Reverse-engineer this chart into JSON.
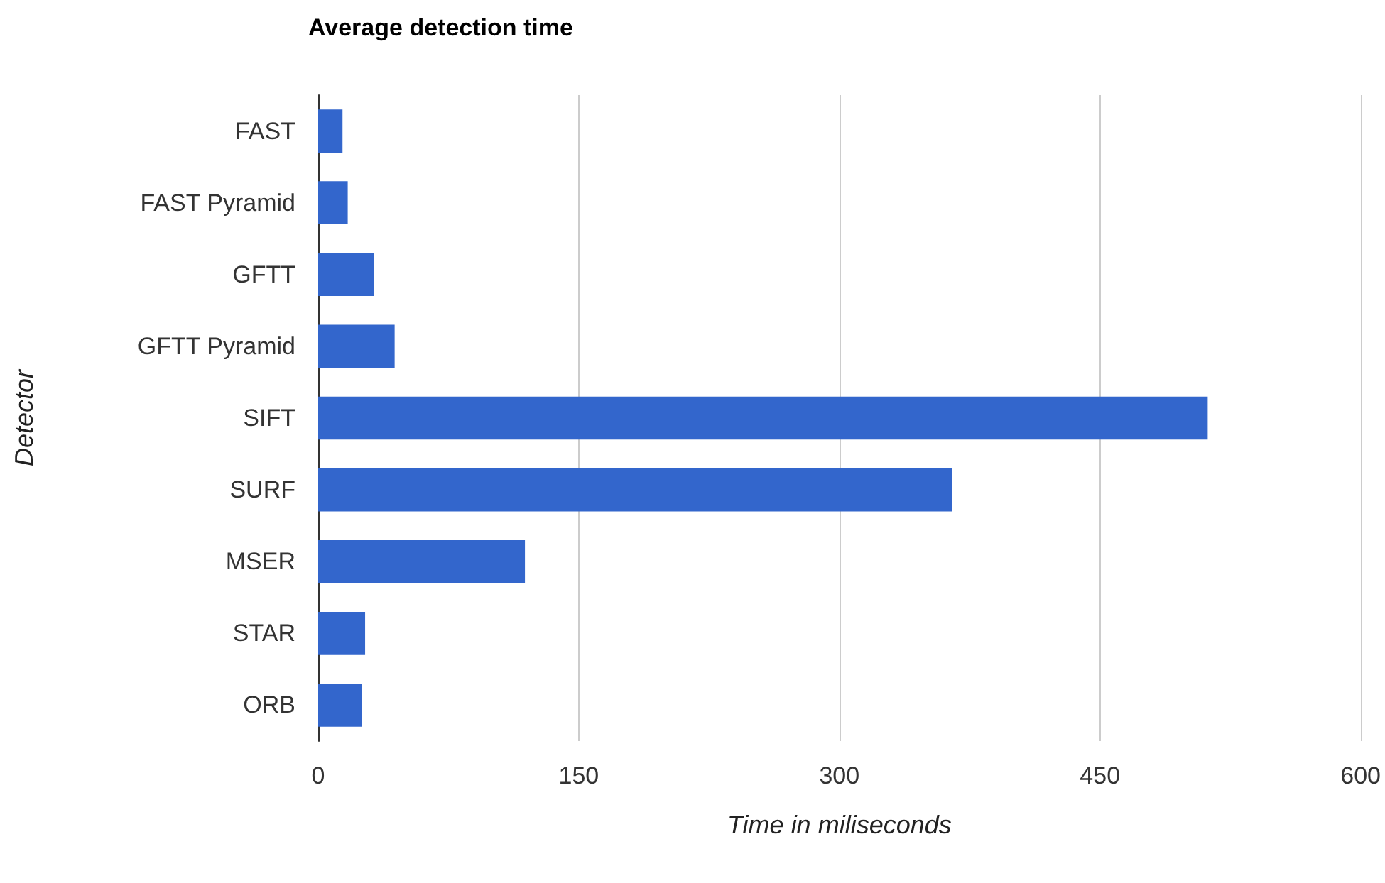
{
  "chart_data": {
    "type": "bar",
    "orientation": "horizontal",
    "title": "Average detection time",
    "xlabel": "Time in miliseconds",
    "ylabel": "Detector",
    "categories": [
      "FAST",
      "FAST Pyramid",
      "GFTT",
      "GFTT Pyramid",
      "SIFT",
      "SURF",
      "MSER",
      "STAR",
      "ORB"
    ],
    "values": [
      14,
      17,
      32,
      44,
      512,
      365,
      119,
      27,
      25
    ],
    "color": "#3366cc",
    "xlim": [
      0,
      600
    ],
    "xticks": [
      0,
      150,
      300,
      450,
      600
    ],
    "grid": "x"
  }
}
